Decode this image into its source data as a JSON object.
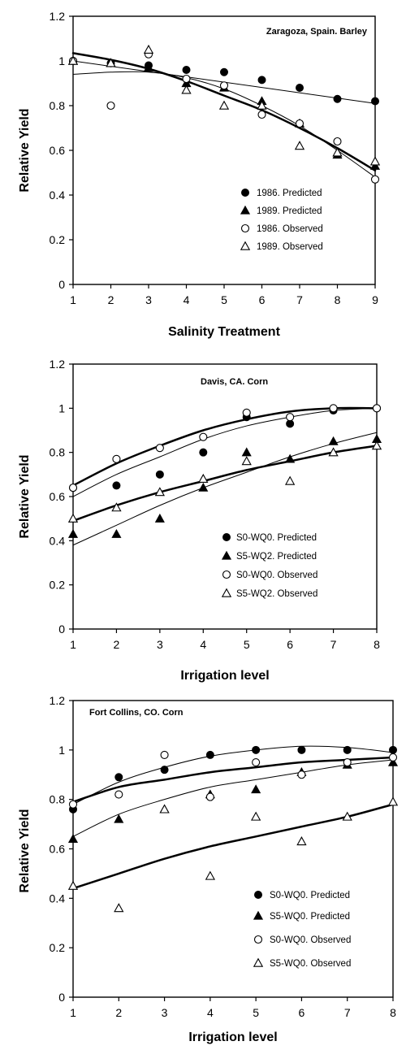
{
  "chart_data": [
    {
      "type": "scatter",
      "title": "Zaragoza, Spain. Barley",
      "xlabel": "Salinity Treatment",
      "ylabel": "Relative Yield",
      "xlim": [
        1,
        9
      ],
      "ylim": [
        0,
        1.2
      ],
      "xticks": [
        "1",
        "2",
        "3",
        "4",
        "5",
        "6",
        "7",
        "8",
        "9"
      ],
      "yticks": [
        "0",
        "0.2",
        "0.4",
        "0.6",
        "0.8",
        "1",
        "1.2"
      ],
      "legend_position": "lower-right",
      "series": [
        {
          "name": "1986. Predicted",
          "marker": "filled-circle",
          "x": [
            1,
            2,
            3,
            4,
            5,
            6,
            7,
            8,
            9
          ],
          "y": [
            1.0,
            0.99,
            0.98,
            0.96,
            0.95,
            0.915,
            0.88,
            0.83,
            0.82
          ]
        },
        {
          "name": "1989. Predicted",
          "marker": "filled-triangle",
          "x": [
            1,
            2,
            3,
            4,
            5,
            6,
            7,
            8,
            9
          ],
          "y": [
            1.0,
            0.99,
            0.97,
            0.9,
            0.88,
            0.82,
            0.72,
            0.58,
            0.53
          ]
        },
        {
          "name": "1986. Observed",
          "marker": "open-circle",
          "x": [
            1,
            2,
            3,
            4,
            5,
            6,
            7,
            8,
            9
          ],
          "y": [
            1.0,
            0.8,
            1.03,
            0.92,
            0.89,
            0.76,
            0.72,
            0.64,
            0.47
          ]
        },
        {
          "name": "1989. Observed",
          "marker": "open-triangle",
          "x": [
            1,
            2,
            3,
            4,
            5,
            6,
            7,
            8,
            9
          ],
          "y": [
            1.0,
            0.99,
            1.05,
            0.87,
            0.8,
            0.8,
            0.62,
            0.59,
            0.55
          ]
        }
      ],
      "fit_lines": [
        {
          "width": 1,
          "x": [
            1,
            9
          ],
          "y": [
            1.0,
            0.81
          ]
        },
        {
          "width": 2.5,
          "x": [
            1,
            2,
            3,
            4,
            5,
            6,
            7,
            8,
            9
          ],
          "y": [
            1.035,
            1.005,
            0.965,
            0.91,
            0.845,
            0.78,
            0.7,
            0.61,
            0.51
          ]
        },
        {
          "width": 1,
          "x": [
            1,
            2,
            3,
            4,
            5,
            6,
            7,
            8,
            9
          ],
          "y": [
            0.94,
            0.95,
            0.95,
            0.925,
            0.875,
            0.8,
            0.71,
            0.6,
            0.48
          ]
        }
      ]
    },
    {
      "type": "scatter",
      "title": "Davis, CA. Corn",
      "xlabel": "Irrigation level",
      "ylabel": "Relative Yield",
      "xlim": [
        1,
        8
      ],
      "ylim": [
        0,
        1.2
      ],
      "xticks": [
        "1",
        "2",
        "3",
        "4",
        "5",
        "6",
        "7",
        "8"
      ],
      "yticks": [
        "0",
        "0.2",
        "0.4",
        "0.6",
        "0.8",
        "1",
        "1.2"
      ],
      "legend_position": "lower-right",
      "series": [
        {
          "name": "S0-WQ0. Predicted",
          "marker": "filled-circle",
          "x": [
            1,
            2,
            3,
            4,
            5,
            6,
            7,
            8
          ],
          "y": [
            0.64,
            0.65,
            0.7,
            0.8,
            0.96,
            0.93,
            0.99,
            1.0
          ]
        },
        {
          "name": "S5-WQ2. Predicted",
          "marker": "filled-triangle",
          "x": [
            1,
            2,
            3,
            4,
            5,
            6,
            7,
            8
          ],
          "y": [
            0.43,
            0.43,
            0.5,
            0.64,
            0.8,
            0.77,
            0.85,
            0.86
          ]
        },
        {
          "name": "S0-WQ0. Observed",
          "marker": "open-circle",
          "x": [
            1,
            2,
            3,
            4,
            5,
            6,
            7,
            8
          ],
          "y": [
            0.64,
            0.77,
            0.82,
            0.87,
            0.98,
            0.96,
            1.0,
            1.0
          ]
        },
        {
          "name": "S5-WQ2. Observed",
          "marker": "open-triangle",
          "x": [
            1,
            2,
            3,
            4,
            5,
            6,
            7,
            8
          ],
          "y": [
            0.5,
            0.55,
            0.62,
            0.68,
            0.76,
            0.67,
            0.8,
            0.83
          ]
        }
      ],
      "fit_lines": [
        {
          "width": 2.5,
          "x": [
            1,
            2,
            3,
            4,
            5,
            6,
            7,
            8
          ],
          "y": [
            0.65,
            0.75,
            0.83,
            0.9,
            0.95,
            0.985,
            1.0,
            1.0
          ]
        },
        {
          "width": 1,
          "x": [
            1,
            2,
            3,
            4,
            5,
            6,
            7,
            8
          ],
          "y": [
            0.6,
            0.7,
            0.78,
            0.86,
            0.92,
            0.96,
            0.99,
            1.0
          ]
        },
        {
          "width": 2.5,
          "x": [
            1,
            2,
            3,
            4,
            5,
            6,
            7,
            8
          ],
          "y": [
            0.49,
            0.56,
            0.62,
            0.67,
            0.72,
            0.76,
            0.8,
            0.83
          ]
        },
        {
          "width": 1,
          "x": [
            1,
            2,
            3,
            4,
            5,
            6,
            7,
            8
          ],
          "y": [
            0.38,
            0.47,
            0.56,
            0.64,
            0.71,
            0.78,
            0.84,
            0.89
          ]
        }
      ]
    },
    {
      "type": "scatter",
      "title": "Fort Collins, CO. Corn",
      "xlabel": "Irrigation level",
      "ylabel": "Relative Yield",
      "xlim": [
        1,
        8
      ],
      "ylim": [
        0,
        1.2
      ],
      "xticks": [
        "1",
        "2",
        "3",
        "4",
        "5",
        "6",
        "7",
        "8"
      ],
      "yticks": [
        "0",
        "0.2",
        "0.4",
        "0.6",
        "0.8",
        "1",
        "1.2"
      ],
      "legend_position": "lower-right",
      "series": [
        {
          "name": "S0-WQ0. Predicted",
          "marker": "filled-circle",
          "x": [
            1,
            2,
            3,
            4,
            5,
            6,
            7,
            8
          ],
          "y": [
            0.76,
            0.89,
            0.92,
            0.98,
            1.0,
            1.0,
            1.0,
            1.0
          ]
        },
        {
          "name": "S5-WQ0. Predicted",
          "marker": "filled-triangle",
          "x": [
            1,
            2,
            3,
            4,
            5,
            6,
            7,
            8
          ],
          "y": [
            0.64,
            0.72,
            0.76,
            0.82,
            0.84,
            0.91,
            0.94,
            0.95
          ]
        },
        {
          "name": "S0-WQ0. Observed",
          "marker": "open-circle",
          "x": [
            1,
            2,
            3,
            4,
            5,
            6,
            7,
            8
          ],
          "y": [
            0.78,
            0.82,
            0.98,
            0.81,
            0.95,
            0.9,
            0.95,
            0.97
          ]
        },
        {
          "name": "S5-WQ0. Observed",
          "marker": "open-triangle",
          "x": [
            1,
            2,
            3,
            4,
            5,
            6,
            7,
            8
          ],
          "y": [
            0.45,
            0.36,
            0.76,
            0.49,
            0.73,
            0.63,
            0.73,
            0.79
          ]
        }
      ],
      "fit_lines": [
        {
          "width": 1,
          "x": [
            1,
            2,
            3,
            4,
            5,
            6,
            7,
            8
          ],
          "y": [
            0.78,
            0.87,
            0.93,
            0.975,
            1.0,
            1.015,
            1.01,
            0.99
          ]
        },
        {
          "width": 2.5,
          "x": [
            1,
            2,
            3,
            4,
            5,
            6,
            7,
            8
          ],
          "y": [
            0.79,
            0.85,
            0.88,
            0.91,
            0.93,
            0.95,
            0.96,
            0.97
          ]
        },
        {
          "width": 1,
          "x": [
            1,
            2,
            3,
            4,
            5,
            6,
            7,
            8
          ],
          "y": [
            0.65,
            0.74,
            0.8,
            0.85,
            0.88,
            0.91,
            0.94,
            0.96
          ]
        },
        {
          "width": 2.5,
          "x": [
            1,
            2,
            3,
            4,
            5,
            6,
            7,
            8
          ],
          "y": [
            0.44,
            0.5,
            0.56,
            0.61,
            0.65,
            0.69,
            0.73,
            0.78
          ]
        }
      ]
    }
  ]
}
